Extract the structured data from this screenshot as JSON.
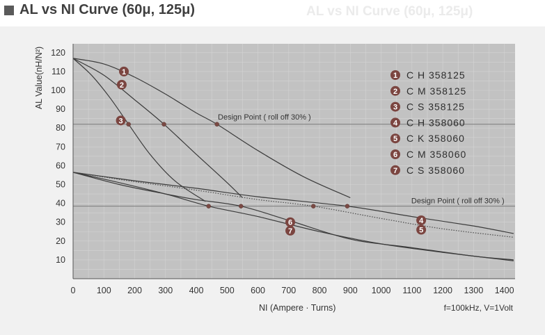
{
  "header": {
    "title": "AL vs NI Curve (60μ, 125μ)",
    "title_ghost": "AL vs NI Curve (60μ, 125μ)"
  },
  "chart_data": {
    "type": "line",
    "title": "AL vs NI Curve (60μ, 125μ)",
    "xlabel": "NI (Ampere · Turns)",
    "ylabel": "AL Value(nH/N²)",
    "note": "f=100kHz, V=1Volt",
    "xlim": [
      0,
      1430
    ],
    "ylim": [
      0,
      120
    ],
    "x_ticks": [
      0,
      100,
      200,
      300,
      400,
      500,
      600,
      700,
      800,
      900,
      1000,
      1100,
      1200,
      1300,
      1400
    ],
    "y_ticks": [
      10,
      20,
      30,
      40,
      50,
      60,
      70,
      80,
      90,
      100,
      110,
      120
    ],
    "grid": true,
    "legend_position": "top-right",
    "reference_lines": [
      {
        "label": "Design Point ( roll off 30% )",
        "y": 82
      },
      {
        "label": "Design Point ( roll off 30% )",
        "y": 38.5
      }
    ],
    "series": [
      {
        "name": "C H 358125",
        "marker": "1",
        "color": "#3b3b3b",
        "dashed": false,
        "label_at": [
          165,
          110
        ],
        "points": [
          [
            0,
            117
          ],
          [
            100,
            114
          ],
          [
            200,
            107
          ],
          [
            300,
            98
          ],
          [
            400,
            88
          ],
          [
            467,
            82
          ],
          [
            600,
            68
          ],
          [
            750,
            54
          ],
          [
            900,
            43
          ]
        ]
      },
      {
        "name": "C M 358125",
        "marker": "2",
        "color": "#3b3b3b",
        "dashed": false,
        "label_at": [
          158,
          103
        ],
        "points": [
          [
            0,
            117
          ],
          [
            100,
            108
          ],
          [
            200,
            95
          ],
          [
            295,
            82
          ],
          [
            400,
            66
          ],
          [
            500,
            51
          ],
          [
            550,
            43
          ]
        ]
      },
      {
        "name": "C S 358125",
        "marker": "3",
        "color": "#3b3b3b",
        "dashed": false,
        "label_at": [
          155,
          84
        ],
        "points": [
          [
            0,
            117
          ],
          [
            60,
            108
          ],
          [
            120,
            96
          ],
          [
            180,
            82
          ],
          [
            250,
            66
          ],
          [
            330,
            52
          ],
          [
            430,
            41
          ]
        ]
      },
      {
        "name": "C H 358060",
        "marker": "4",
        "color": "#3b3b3b",
        "dashed": false,
        "label_at": [
          1130,
          31
        ],
        "points": [
          [
            0,
            56.5
          ],
          [
            200,
            52
          ],
          [
            400,
            48
          ],
          [
            600,
            43.5
          ],
          [
            890,
            38.5
          ],
          [
            1100,
            33
          ],
          [
            1300,
            28
          ],
          [
            1430,
            24
          ]
        ]
      },
      {
        "name": "C K 358060",
        "marker": "5",
        "color": "#4a4a4a",
        "dashed": true,
        "label_at": [
          1130,
          26
        ],
        "points": [
          [
            0,
            56.5
          ],
          [
            200,
            51.5
          ],
          [
            400,
            47
          ],
          [
            600,
            42
          ],
          [
            780,
            38.5
          ],
          [
            1000,
            32
          ],
          [
            1200,
            26.5
          ],
          [
            1430,
            22
          ]
        ]
      },
      {
        "name": "C M 358060",
        "marker": "6",
        "color": "#3b3b3b",
        "dashed": false,
        "label_at": [
          705,
          30
        ],
        "points": [
          [
            0,
            56.5
          ],
          [
            150,
            51
          ],
          [
            300,
            45
          ],
          [
            440,
            38.5
          ],
          [
            600,
            33
          ],
          [
            800,
            25
          ],
          [
            1000,
            18.5
          ],
          [
            1200,
            14
          ],
          [
            1430,
            9.5
          ]
        ]
      },
      {
        "name": "C S 358060",
        "marker": "7",
        "color": "#3b3b3b",
        "dashed": false,
        "label_at": [
          705,
          25.5
        ],
        "points": [
          [
            0,
            56.5
          ],
          [
            150,
            50
          ],
          [
            300,
            45
          ],
          [
            400,
            42
          ],
          [
            545,
            38.5
          ],
          [
            700,
            31
          ],
          [
            900,
            21
          ],
          [
            1100,
            16.5
          ],
          [
            1300,
            12
          ],
          [
            1430,
            10
          ]
        ]
      }
    ],
    "design_points": [
      {
        "x": 467,
        "y": 82
      },
      {
        "x": 295,
        "y": 82
      },
      {
        "x": 180,
        "y": 82
      },
      {
        "x": 890,
        "y": 38.5
      },
      {
        "x": 780,
        "y": 38.5
      },
      {
        "x": 440,
        "y": 38.5
      },
      {
        "x": 545,
        "y": 38.5
      }
    ]
  }
}
